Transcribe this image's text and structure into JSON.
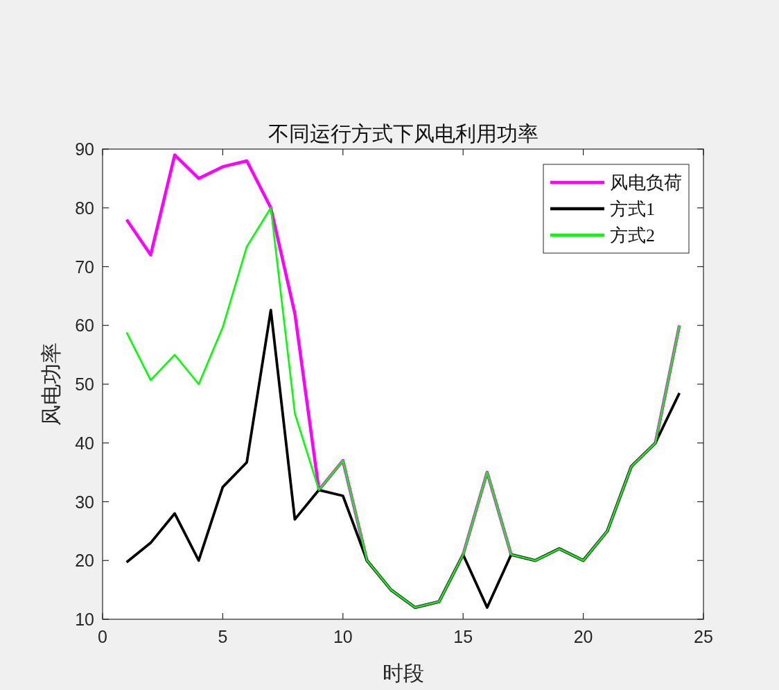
{
  "chart_data": {
    "type": "line",
    "title": "不同运行方式下风电利用功率",
    "xlabel": "时段",
    "ylabel": "风电功率",
    "x": [
      1,
      2,
      3,
      4,
      5,
      6,
      7,
      8,
      9,
      10,
      11,
      12,
      13,
      14,
      15,
      16,
      17,
      18,
      19,
      20,
      21,
      22,
      23,
      24
    ],
    "xlim": [
      0,
      25
    ],
    "xticks": [
      0,
      5,
      10,
      15,
      20,
      25
    ],
    "ylim": [
      10,
      90
    ],
    "yticks": [
      10,
      20,
      30,
      40,
      50,
      60,
      70,
      80,
      90
    ],
    "grid": false,
    "legend": "top right",
    "line_style": "solid",
    "series": [
      {
        "name": "风电负荷",
        "color": "#ff00ff",
        "values": [
          78,
          72,
          89,
          85,
          87,
          88,
          80,
          62,
          32,
          37,
          20,
          15,
          12,
          13,
          21,
          35,
          21,
          20,
          22,
          20,
          25,
          36,
          40,
          60
        ]
      },
      {
        "name": "方式1",
        "color": "#000000",
        "values": [
          19.7,
          23,
          28,
          20,
          32.5,
          36.7,
          62.6,
          27,
          32,
          31,
          20,
          15,
          12,
          13,
          21,
          12,
          21,
          20,
          22,
          20,
          25,
          36,
          40,
          48.5
        ]
      },
      {
        "name": "方式2",
        "color": "#00ff00",
        "values": [
          58.8,
          50.7,
          55,
          50,
          59.7,
          73.4,
          80,
          45,
          32,
          37,
          20,
          15,
          12,
          13,
          21,
          35,
          21,
          20,
          22,
          20,
          25,
          36,
          40,
          60
        ]
      }
    ]
  }
}
